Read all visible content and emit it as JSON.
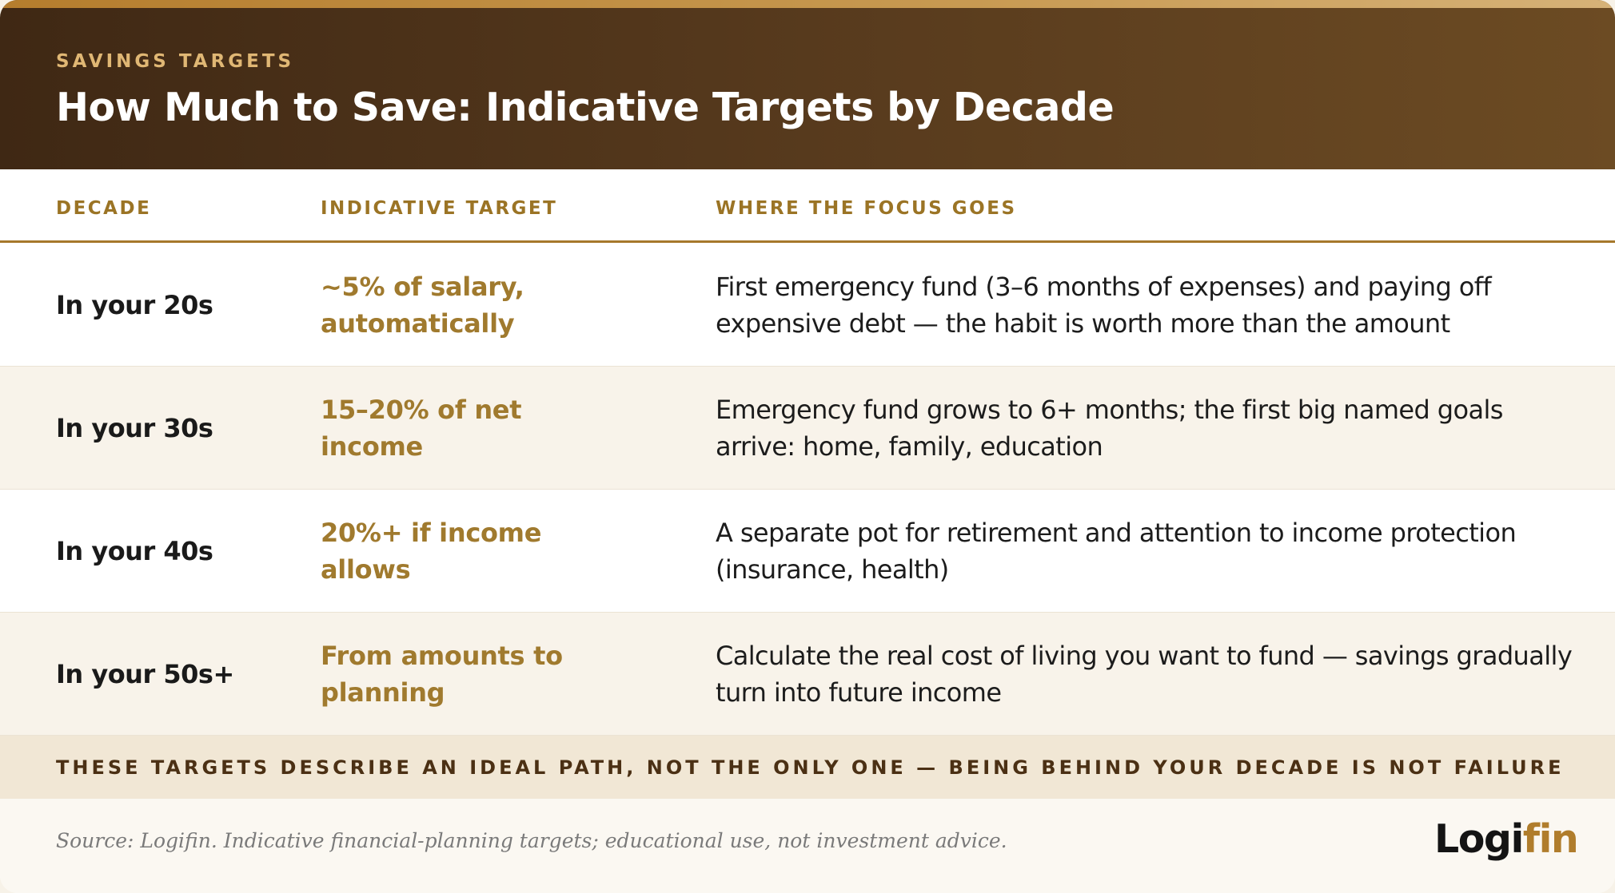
{
  "header": {
    "eyebrow": "SAVINGS TARGETS",
    "title": "How Much to Save: Indicative Targets by Decade"
  },
  "columns": {
    "decade": "DECADE",
    "target": "INDICATIVE TARGET",
    "focus": "WHERE THE FOCUS GOES"
  },
  "rows": [
    {
      "decade": "In your 20s",
      "target": "~5% of salary, automatically",
      "focus": "First emergency fund (3–6 months of expenses) and paying off expensive debt — the habit is worth more than the amount"
    },
    {
      "decade": "In your 30s",
      "target": "15–20% of net income",
      "focus": "Emergency fund grows to 6+ months; the first big named goals arrive: home, family, education"
    },
    {
      "decade": "In your 40s",
      "target": "20%+ if income allows",
      "focus": "A separate pot for retirement and attention to income protection (insurance, health)"
    },
    {
      "decade": "In your 50s+",
      "target": "From amounts to planning",
      "focus": "Calculate the real cost of living you want to fund — savings gradually turn into future income"
    }
  ],
  "banner": "THESE TARGETS DESCRIBE AN IDEAL PATH, NOT THE ONLY ONE — BEING BEHIND YOUR DECADE IS NOT FAILURE",
  "footer": {
    "source": "Source: Logifin. Indicative financial-planning targets; educational use, not investment advice.",
    "logo_part1": "Logi",
    "logo_part2": "fin"
  },
  "colors": {
    "header_dark": "#3f2814",
    "header_light": "#6c4b23",
    "accent_gold": "#a07a2e",
    "eyebrow_gold": "#e0b774",
    "banner_bg": "#f1e7d5"
  }
}
